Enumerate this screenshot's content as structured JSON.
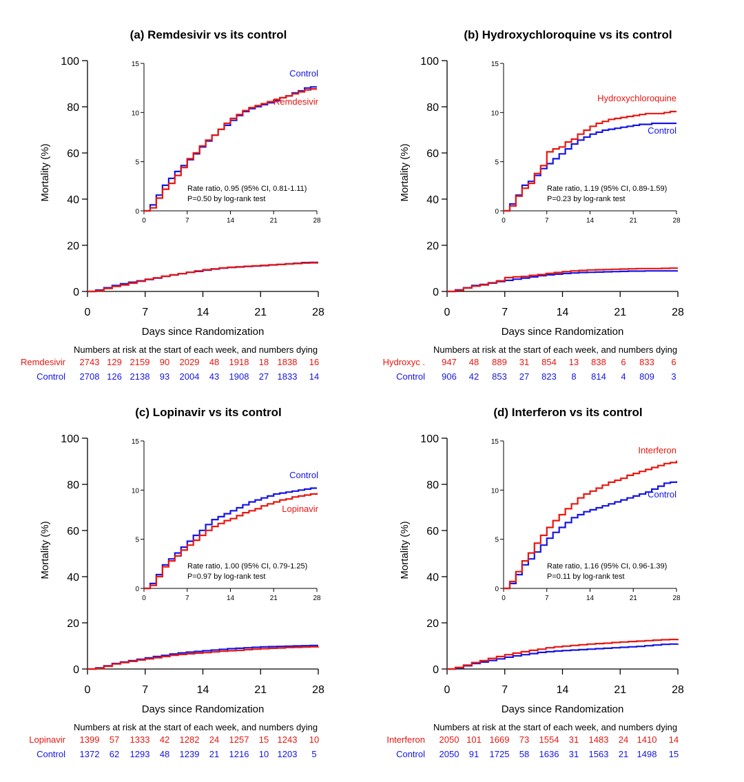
{
  "colors": {
    "treatment": "#e8150f",
    "control": "#1414e6"
  },
  "chart_data": [
    {
      "type": "line",
      "title": "(a) Remdesivir vs its control",
      "xlabel": "Days since Randomization",
      "ylabel": "Mortality (%)",
      "xlim": [
        0,
        28
      ],
      "ylim": [
        0,
        100
      ],
      "xticks": [
        "0",
        "7",
        "14",
        "21",
        "28"
      ],
      "yticks": [
        "0",
        "20",
        "40",
        "60",
        "80",
        "100"
      ],
      "inset": {
        "xlim": [
          0,
          28
        ],
        "ylim": [
          0,
          15
        ],
        "xticks": [
          "0",
          "7",
          "14",
          "21",
          "28"
        ],
        "yticks": [
          "0",
          "5",
          "10",
          "15"
        ],
        "rate_text": "Rate ratio, 0.95 (95% CI, 0.81-1.11)",
        "p_text": "P=0.50 by log-rank test"
      },
      "series": [
        {
          "name": "Remdesivir",
          "role": "treatment",
          "x": [
            0,
            1,
            2,
            3,
            4,
            5,
            6,
            7,
            8,
            9,
            10,
            11,
            12,
            13,
            14,
            15,
            16,
            17,
            18,
            19,
            20,
            21,
            22,
            23,
            24,
            25,
            26,
            27,
            28
          ],
          "y": [
            0,
            0.3,
            1.3,
            2.2,
            2.8,
            3.6,
            4.4,
            5.3,
            5.9,
            6.6,
            7.2,
            7.7,
            8.3,
            8.9,
            9.4,
            9.8,
            10.2,
            10.5,
            10.7,
            10.9,
            11.1,
            11.3,
            11.5,
            11.7,
            11.9,
            12.1,
            12.3,
            12.4,
            12.4
          ]
        },
        {
          "name": "Control",
          "role": "control",
          "x": [
            0,
            1,
            2,
            3,
            4,
            5,
            6,
            7,
            8,
            9,
            10,
            11,
            12,
            13,
            14,
            15,
            16,
            17,
            18,
            19,
            20,
            21,
            22,
            23,
            24,
            25,
            26,
            27,
            28
          ],
          "y": [
            0,
            0.6,
            1.6,
            2.6,
            3.3,
            4.0,
            4.6,
            5.2,
            5.8,
            6.5,
            7.1,
            7.7,
            8.3,
            8.7,
            9.2,
            9.7,
            10.1,
            10.4,
            10.6,
            10.8,
            11.0,
            11.2,
            11.5,
            11.7,
            12.0,
            12.2,
            12.5,
            12.6,
            12.6
          ]
        }
      ],
      "risk_table": {
        "header": "Numbers at risk at the start of each week, and numbers dying",
        "rows": [
          {
            "label": "Remdesivir",
            "role": "treatment",
            "values": [
              "2743",
              "129",
              "2159",
              "90",
              "2029",
              "48",
              "1918",
              "18",
              "1838",
              "16"
            ]
          },
          {
            "label": "Control",
            "role": "control",
            "values": [
              "2708",
              "126",
              "2138",
              "93",
              "2004",
              "43",
              "1908",
              "27",
              "1833",
              "14"
            ]
          }
        ]
      }
    },
    {
      "type": "line",
      "title": "(b) Hydroxychloroquine vs its control",
      "xlabel": "Days since Randomization",
      "ylabel": "Mortality (%)",
      "xlim": [
        0,
        28
      ],
      "ylim": [
        0,
        100
      ],
      "xticks": [
        "0",
        "7",
        "14",
        "21",
        "28"
      ],
      "yticks": [
        "0",
        "20",
        "40",
        "60",
        "80",
        "100"
      ],
      "inset": {
        "xlim": [
          0,
          28
        ],
        "ylim": [
          0,
          15
        ],
        "xticks": [
          "0",
          "7",
          "14",
          "21",
          "28"
        ],
        "yticks": [
          "0",
          "5",
          "10",
          "15"
        ],
        "rate_text": "Rate ratio, 1.19 (95% CI, 0.89-1.59)",
        "p_text": "P=0.23 by log-rank test"
      },
      "series": [
        {
          "name": "Hydroxychloroquine",
          "role": "treatment",
          "x": [
            0,
            1,
            2,
            3,
            4,
            5,
            6,
            7,
            8,
            9,
            10,
            11,
            12,
            13,
            14,
            15,
            16,
            17,
            18,
            19,
            20,
            21,
            22,
            23,
            24,
            25,
            26,
            27,
            28
          ],
          "y": [
            0,
            0.5,
            1.5,
            2.3,
            2.8,
            3.8,
            4.6,
            6.0,
            6.3,
            6.5,
            7.0,
            7.3,
            7.8,
            8.2,
            8.6,
            8.9,
            9.1,
            9.3,
            9.4,
            9.5,
            9.6,
            9.7,
            9.8,
            9.9,
            9.9,
            9.9,
            10.0,
            10.1,
            10.1
          ]
        },
        {
          "name": "Control",
          "role": "control",
          "x": [
            0,
            1,
            2,
            3,
            4,
            5,
            6,
            7,
            8,
            9,
            10,
            11,
            12,
            13,
            14,
            15,
            16,
            17,
            18,
            19,
            20,
            21,
            22,
            23,
            24,
            25,
            26,
            27,
            28
          ],
          "y": [
            0,
            0.7,
            1.6,
            2.6,
            3.0,
            3.6,
            4.3,
            4.8,
            5.3,
            5.8,
            6.3,
            6.8,
            7.2,
            7.5,
            7.8,
            8.0,
            8.2,
            8.3,
            8.4,
            8.5,
            8.6,
            8.7,
            8.8,
            8.8,
            8.9,
            8.9,
            8.9,
            8.9,
            8.9
          ]
        }
      ],
      "risk_table": {
        "header": "Numbers at risk at the start of each week, and numbers dying",
        "rows": [
          {
            "label": "Hydroxyc .",
            "role": "treatment",
            "values": [
              "947",
              "48",
              "889",
              "31",
              "854",
              "13",
              "838",
              "6",
              "833",
              "6"
            ]
          },
          {
            "label": "Control",
            "role": "control",
            "values": [
              "906",
              "42",
              "853",
              "27",
              "823",
              "8",
              "814",
              "4",
              "809",
              "3"
            ]
          }
        ]
      }
    },
    {
      "type": "line",
      "title": "(c) Lopinavir vs its control",
      "xlabel": "Days since Randomization",
      "ylabel": "Mortality (%)",
      "xlim": [
        0,
        28
      ],
      "ylim": [
        0,
        100
      ],
      "xticks": [
        "0",
        "7",
        "14",
        "21",
        "28"
      ],
      "yticks": [
        "0",
        "20",
        "40",
        "60",
        "80",
        "100"
      ],
      "inset": {
        "xlim": [
          0,
          28
        ],
        "ylim": [
          0,
          15
        ],
        "xticks": [
          "0",
          "7",
          "14",
          "21",
          "28"
        ],
        "yticks": [
          "0",
          "5",
          "10",
          "15"
        ],
        "rate_text": "Rate ratio, 1.00 (95% CI, 0.79-1.25)",
        "p_text": "P=0.97 by log-rank test"
      },
      "series": [
        {
          "name": "Lopinavir",
          "role": "treatment",
          "x": [
            0,
            1,
            2,
            3,
            4,
            5,
            6,
            7,
            8,
            9,
            10,
            11,
            12,
            13,
            14,
            15,
            16,
            17,
            18,
            19,
            20,
            21,
            22,
            23,
            24,
            25,
            26,
            27,
            28
          ],
          "y": [
            0,
            0.3,
            1.2,
            2.2,
            2.8,
            3.3,
            3.9,
            4.4,
            4.9,
            5.4,
            5.9,
            6.3,
            6.6,
            6.9,
            7.1,
            7.4,
            7.7,
            7.9,
            8.1,
            8.4,
            8.6,
            8.8,
            9.0,
            9.1,
            9.3,
            9.4,
            9.5,
            9.6,
            9.7
          ]
        },
        {
          "name": "Control",
          "role": "control",
          "x": [
            0,
            1,
            2,
            3,
            4,
            5,
            6,
            7,
            8,
            9,
            10,
            11,
            12,
            13,
            14,
            15,
            16,
            17,
            18,
            19,
            20,
            21,
            22,
            23,
            24,
            25,
            26,
            27,
            28
          ],
          "y": [
            0,
            0.5,
            1.4,
            2.4,
            3.0,
            3.6,
            4.2,
            4.8,
            5.4,
            5.9,
            6.5,
            7.0,
            7.3,
            7.6,
            7.9,
            8.2,
            8.5,
            8.8,
            9.0,
            9.2,
            9.4,
            9.6,
            9.7,
            9.8,
            9.9,
            10.0,
            10.1,
            10.2,
            10.2
          ]
        }
      ],
      "risk_table": {
        "header": "Numbers at risk at the start of each week, and numbers dying",
        "rows": [
          {
            "label": "Lopinavir",
            "role": "treatment",
            "values": [
              "1399",
              "57",
              "1333",
              "42",
              "1282",
              "24",
              "1257",
              "15",
              "1243",
              "10"
            ]
          },
          {
            "label": "Control",
            "role": "control",
            "values": [
              "1372",
              "62",
              "1293",
              "48",
              "1239",
              "21",
              "1216",
              "10",
              "1203",
              "5"
            ]
          }
        ]
      }
    },
    {
      "type": "line",
      "title": "(d) Interferon vs its control",
      "xlabel": "Days since Randomization",
      "ylabel": "Mortality (%)",
      "xlim": [
        0,
        28
      ],
      "ylim": [
        0,
        100
      ],
      "xticks": [
        "0",
        "7",
        "14",
        "21",
        "28"
      ],
      "yticks": [
        "0",
        "20",
        "40",
        "60",
        "80",
        "100"
      ],
      "inset": {
        "xlim": [
          0,
          28
        ],
        "ylim": [
          0,
          15
        ],
        "xticks": [
          "0",
          "7",
          "14",
          "21",
          "28"
        ],
        "yticks": [
          "0",
          "5",
          "10",
          "15"
        ],
        "rate_text": "Rate ratio, 1.16 (95% CI, 0.96-1.39)",
        "p_text": "P=0.11 by log-rank test"
      },
      "series": [
        {
          "name": "Interferon",
          "role": "treatment",
          "x": [
            0,
            1,
            2,
            3,
            4,
            5,
            6,
            7,
            8,
            9,
            10,
            11,
            12,
            13,
            14,
            15,
            16,
            17,
            18,
            19,
            20,
            21,
            22,
            23,
            24,
            25,
            26,
            27,
            28
          ],
          "y": [
            0,
            0.7,
            1.7,
            2.8,
            3.6,
            4.6,
            5.4,
            6.2,
            6.9,
            7.5,
            8.1,
            8.6,
            9.2,
            9.6,
            9.9,
            10.2,
            10.5,
            10.8,
            11.0,
            11.2,
            11.5,
            11.7,
            11.9,
            12.1,
            12.3,
            12.5,
            12.7,
            12.8,
            13.0
          ]
        },
        {
          "name": "Control",
          "role": "control",
          "x": [
            0,
            1,
            2,
            3,
            4,
            5,
            6,
            7,
            8,
            9,
            10,
            11,
            12,
            13,
            14,
            15,
            16,
            17,
            18,
            19,
            20,
            21,
            22,
            23,
            24,
            25,
            26,
            27,
            28
          ],
          "y": [
            0,
            0.5,
            1.4,
            2.4,
            3.0,
            3.7,
            4.4,
            5.1,
            5.7,
            6.2,
            6.7,
            7.2,
            7.5,
            7.8,
            8.0,
            8.2,
            8.4,
            8.6,
            8.8,
            9.0,
            9.2,
            9.4,
            9.6,
            9.8,
            10.1,
            10.4,
            10.7,
            10.8,
            10.9
          ]
        }
      ],
      "risk_table": {
        "header": "Numbers at risk at the start of each week, and numbers dying",
        "rows": [
          {
            "label": "Interferon",
            "role": "treatment",
            "values": [
              "2050",
              "101",
              "1669",
              "73",
              "1554",
              "31",
              "1483",
              "24",
              "1410",
              "14"
            ]
          },
          {
            "label": "Control",
            "role": "control",
            "values": [
              "2050",
              "91",
              "1725",
              "58",
              "1636",
              "31",
              "1563",
              "21",
              "1498",
              "15"
            ]
          }
        ]
      }
    }
  ]
}
